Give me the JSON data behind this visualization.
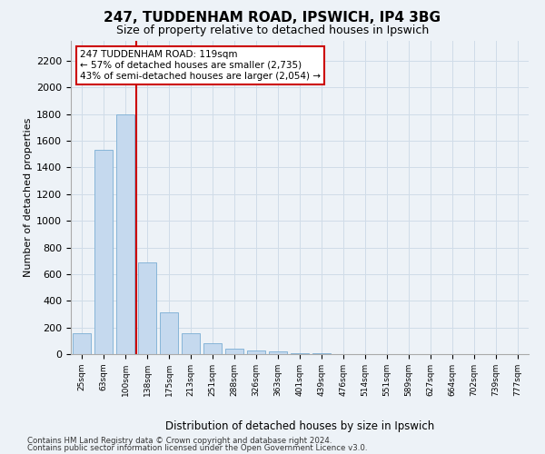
{
  "title_line1": "247, TUDDENHAM ROAD, IPSWICH, IP4 3BG",
  "title_line2": "Size of property relative to detached houses in Ipswich",
  "xlabel": "Distribution of detached houses by size in Ipswich",
  "ylabel": "Number of detached properties",
  "footer_line1": "Contains HM Land Registry data © Crown copyright and database right 2024.",
  "footer_line2": "Contains public sector information licensed under the Open Government Licence v3.0.",
  "annotation_line1": "247 TUDDENHAM ROAD: 119sqm",
  "annotation_line2": "← 57% of detached houses are smaller (2,735)",
  "annotation_line3": "43% of semi-detached houses are larger (2,054) →",
  "bar_labels": [
    "25sqm",
    "63sqm",
    "100sqm",
    "138sqm",
    "175sqm",
    "213sqm",
    "251sqm",
    "288sqm",
    "326sqm",
    "363sqm",
    "401sqm",
    "439sqm",
    "476sqm",
    "514sqm",
    "551sqm",
    "589sqm",
    "627sqm",
    "664sqm",
    "702sqm",
    "739sqm",
    "777sqm"
  ],
  "bar_values": [
    155,
    1530,
    1800,
    690,
    315,
    155,
    80,
    42,
    25,
    20,
    10,
    5,
    3,
    0,
    0,
    0,
    0,
    0,
    0,
    0,
    0
  ],
  "bar_color": "#c5d9ee",
  "bar_edgecolor": "#7aaed4",
  "vline_color": "#cc0000",
  "yticks": [
    0,
    200,
    400,
    600,
    800,
    1000,
    1200,
    1400,
    1600,
    1800,
    2000,
    2200
  ],
  "grid_color": "#d0dce8",
  "annotation_box_color": "#cc0000",
  "annotation_box_facecolor": "white",
  "background_color": "#edf2f7"
}
